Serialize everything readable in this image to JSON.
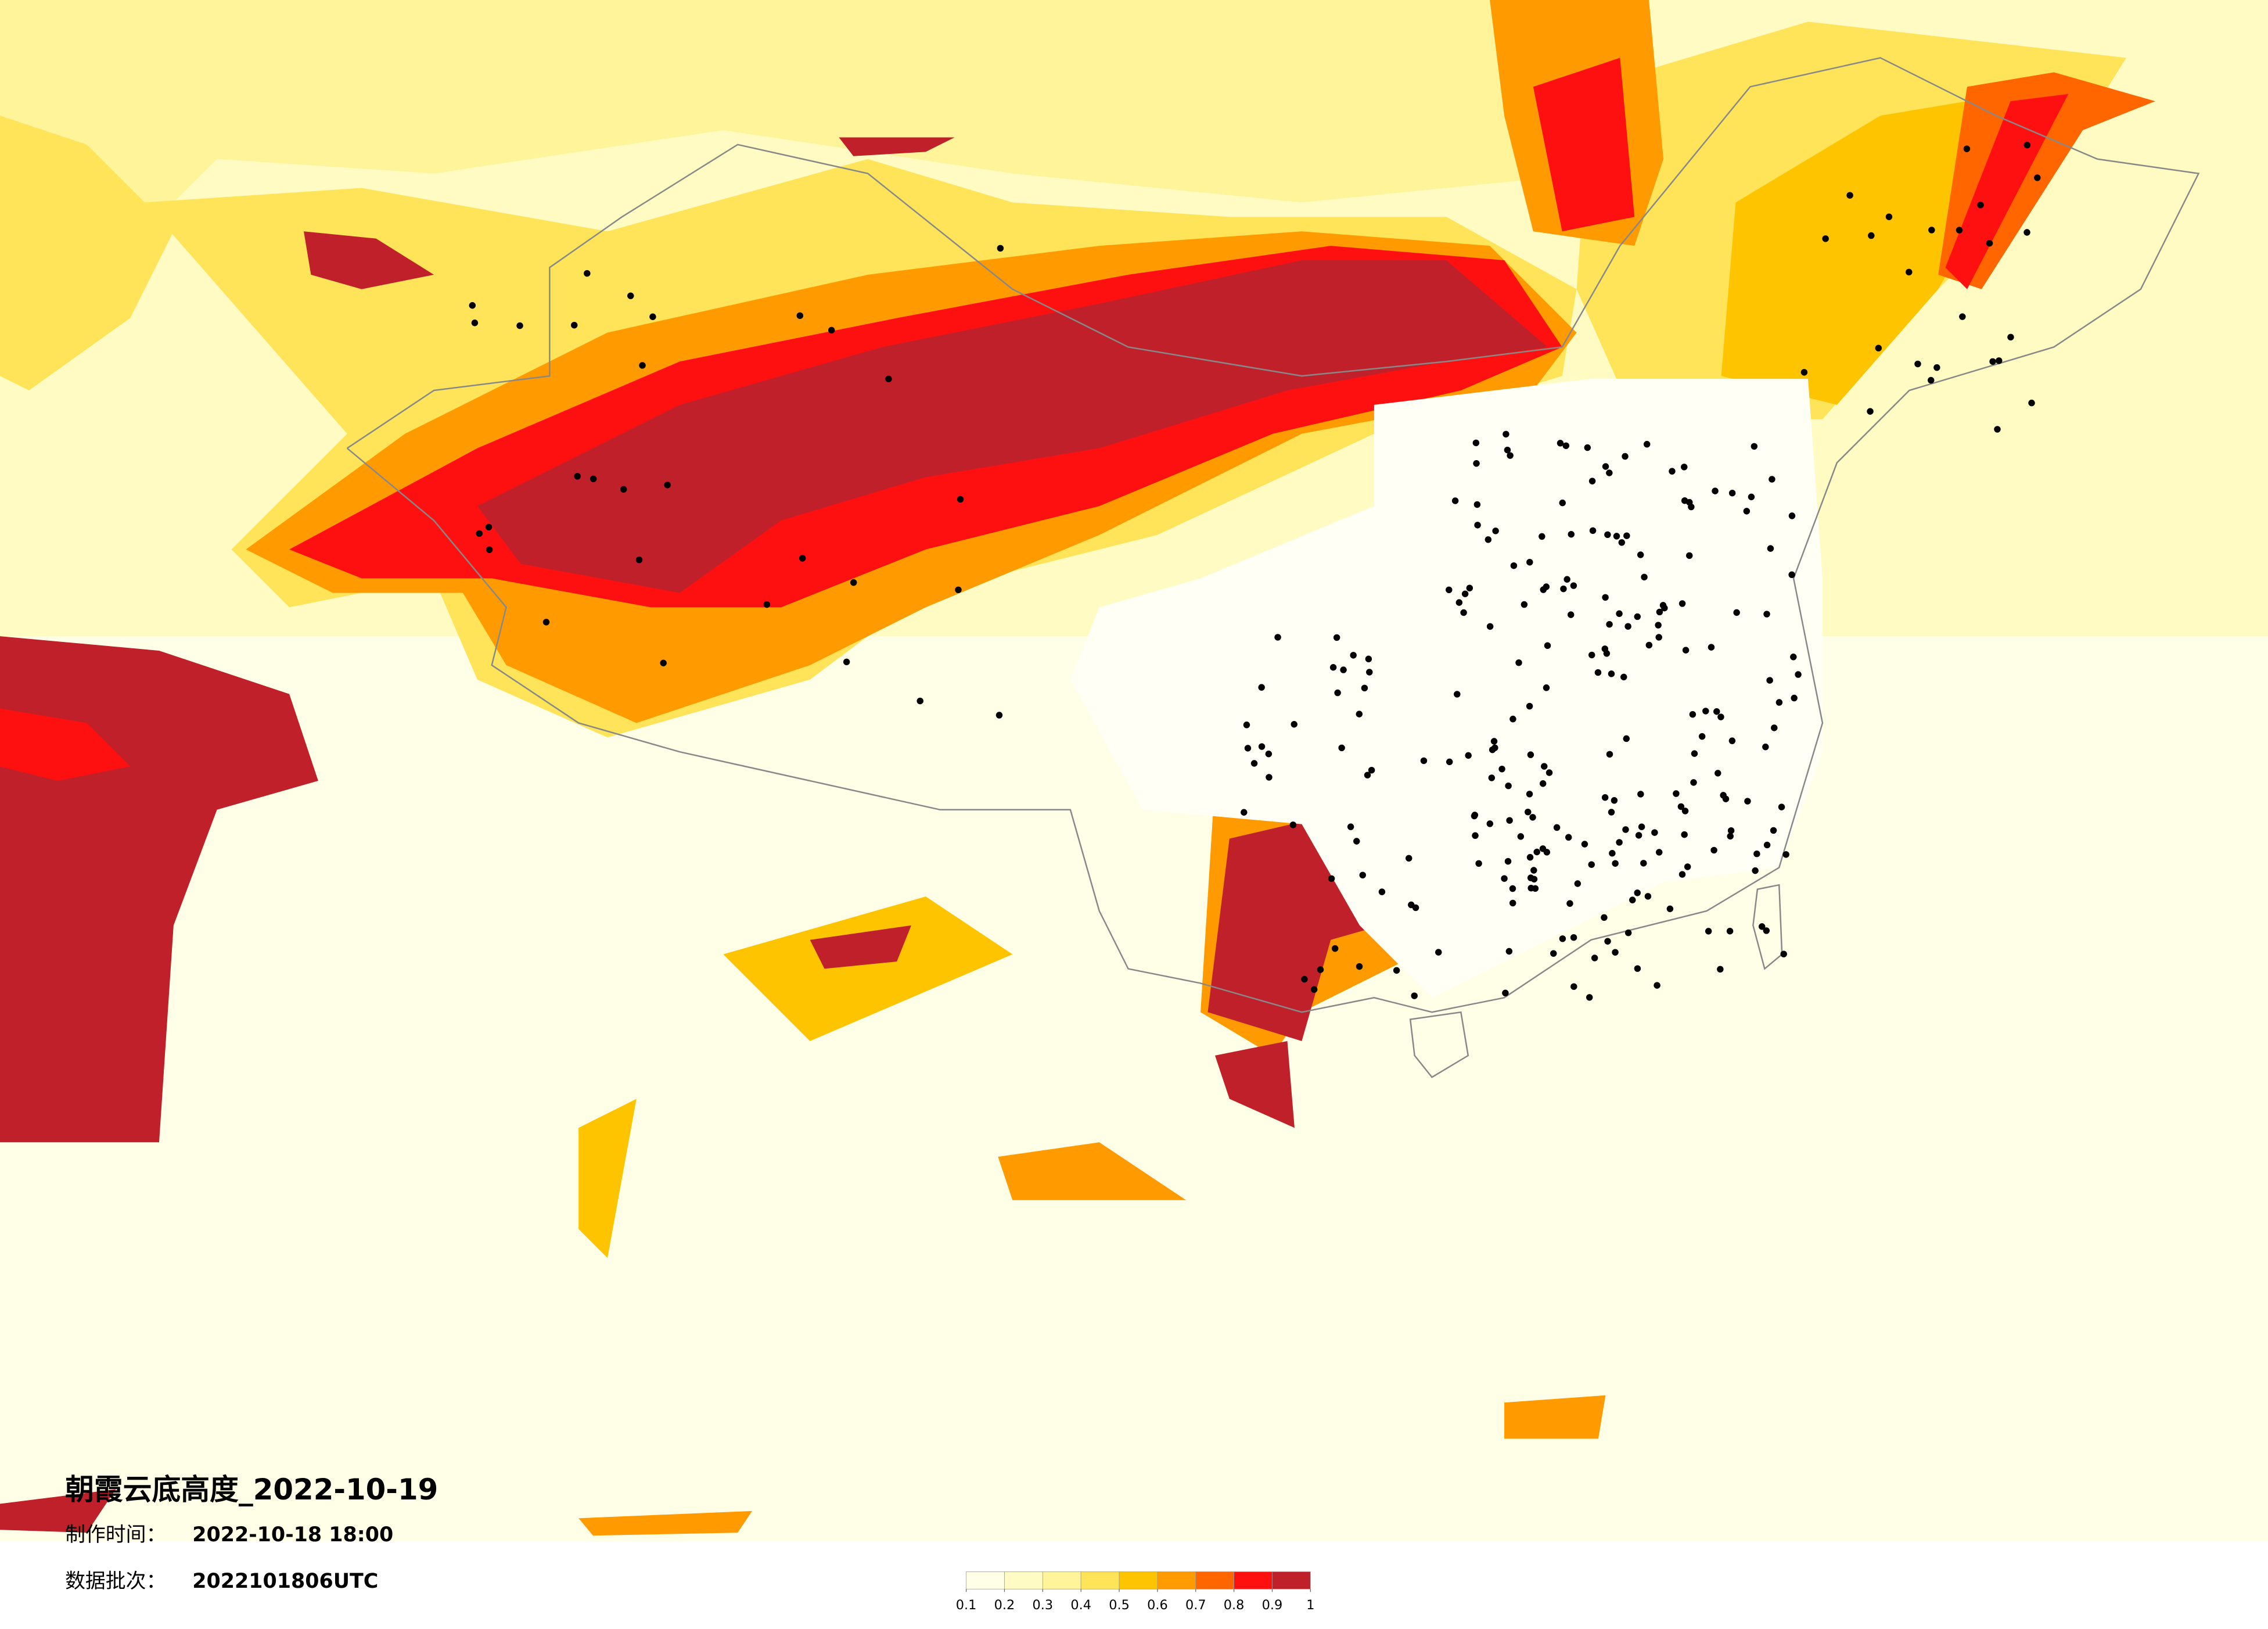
{
  "title": "朝霞云底高度_2022-10-19",
  "production_time": {
    "label": "制作时间：",
    "value": "2022-10-18 18:00"
  },
  "batch": {
    "label": "数据批次：",
    "value": "2022101806UTC"
  },
  "legend": {
    "ticks": [
      0.1,
      0.2,
      0.3,
      0.4,
      0.5,
      0.6,
      0.7,
      0.8,
      0.9,
      1
    ],
    "colors": [
      "#fffee6",
      "#fffbc2",
      "#fff49a",
      "#ffe45a",
      "#ffc400",
      "#ff9a00",
      "#ff6600",
      "#ff1010",
      "#c0202a"
    ]
  }
}
